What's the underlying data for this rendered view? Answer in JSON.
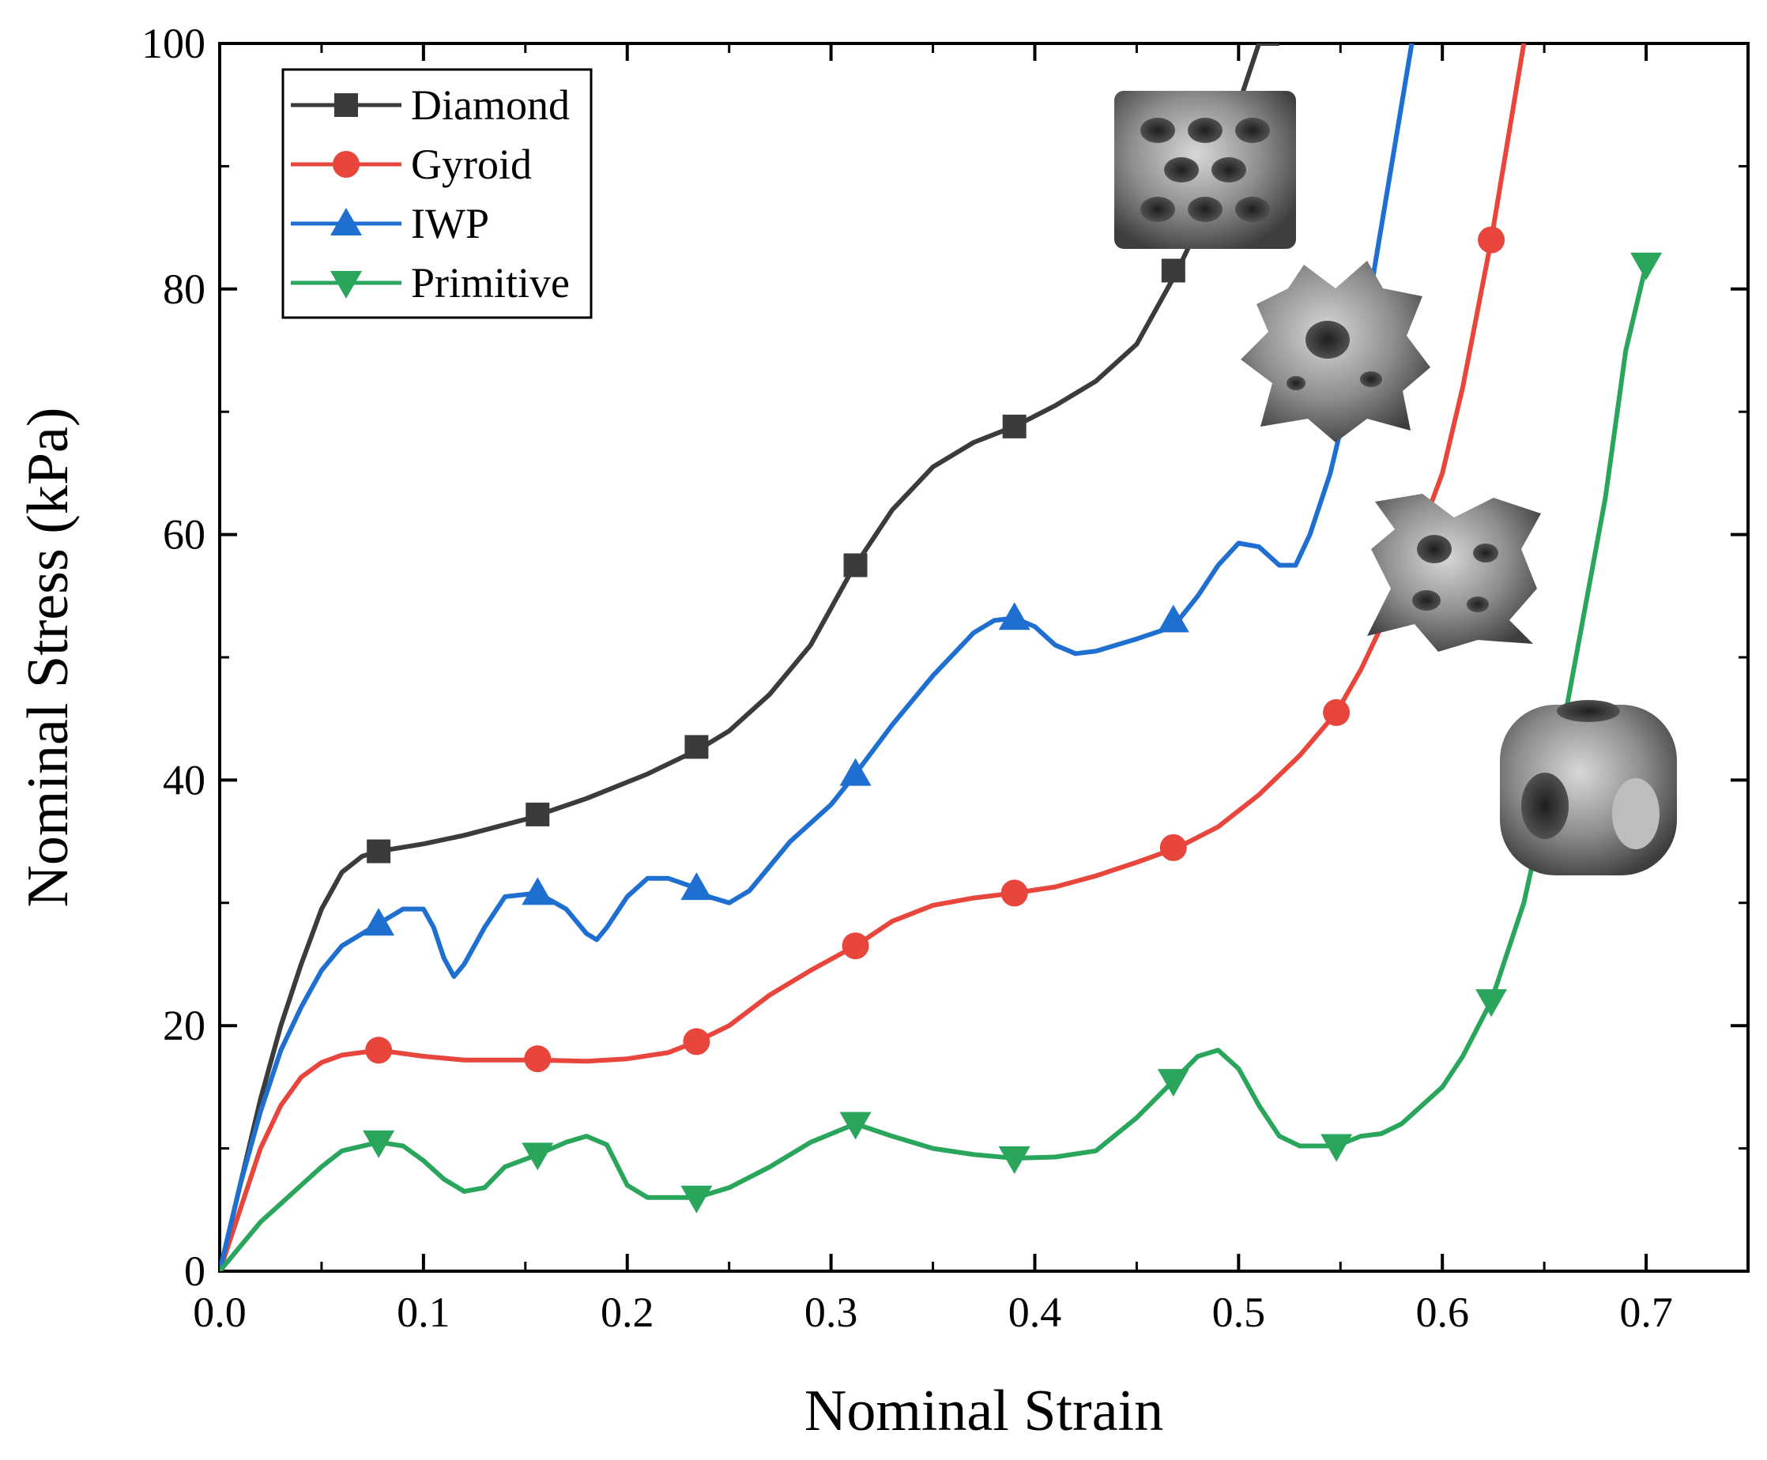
{
  "chart_data": {
    "type": "line",
    "title": "",
    "xlabel": "Nominal Strain",
    "ylabel": "Nominal Stress (kPa)",
    "xlim": [
      0,
      0.75
    ],
    "ylim": [
      0,
      100
    ],
    "xticks": [
      "0.0",
      "0.1",
      "0.2",
      "0.3",
      "0.4",
      "0.5",
      "0.6",
      "0.7"
    ],
    "yticks": [
      "0",
      "20",
      "40",
      "60",
      "80",
      "100"
    ],
    "legend_position": "top-left",
    "grid": false,
    "series": [
      {
        "name": "Diamond",
        "color": "#3b3b3b",
        "marker": "square",
        "x": [
          0,
          0.01,
          0.02,
          0.03,
          0.04,
          0.05,
          0.06,
          0.07,
          0.078,
          0.1,
          0.12,
          0.15,
          0.18,
          0.21,
          0.235,
          0.25,
          0.27,
          0.29,
          0.31,
          0.33,
          0.35,
          0.37,
          0.39,
          0.41,
          0.43,
          0.45,
          0.47,
          0.48,
          0.49,
          0.5,
          0.51,
          0.52
        ],
        "y": [
          0,
          7,
          14,
          20,
          25,
          29.5,
          32.5,
          33.8,
          34.2,
          34.8,
          35.5,
          36.8,
          38.5,
          40.5,
          42.5,
          44,
          47,
          51,
          57,
          62,
          65.5,
          67.5,
          68.8,
          70.5,
          72.5,
          75.5,
          81.5,
          85,
          90,
          95,
          100,
          100
        ]
      },
      {
        "name": "Gyroid",
        "color": "#e8463c",
        "marker": "circle",
        "x": [
          0,
          0.01,
          0.02,
          0.03,
          0.04,
          0.05,
          0.06,
          0.078,
          0.1,
          0.12,
          0.156,
          0.18,
          0.2,
          0.22,
          0.234,
          0.25,
          0.27,
          0.29,
          0.312,
          0.33,
          0.35,
          0.37,
          0.39,
          0.41,
          0.43,
          0.45,
          0.47,
          0.49,
          0.51,
          0.53,
          0.548,
          0.56,
          0.58,
          0.6,
          0.61,
          0.624,
          0.632,
          0.64
        ],
        "y": [
          0,
          5,
          10,
          13.5,
          15.8,
          17,
          17.6,
          18,
          17.5,
          17.2,
          17.2,
          17.1,
          17.3,
          17.8,
          18.7,
          20,
          22.5,
          24.5,
          26.5,
          28.5,
          29.8,
          30.4,
          30.8,
          31.3,
          32.2,
          33.3,
          34.5,
          36.2,
          38.8,
          42,
          45.5,
          49,
          56,
          65,
          72,
          84,
          92,
          100
        ]
      },
      {
        "name": "IWP",
        "color": "#1f6fd1",
        "marker": "triangle-up",
        "x": [
          0,
          0.01,
          0.02,
          0.03,
          0.04,
          0.05,
          0.06,
          0.078,
          0.09,
          0.1,
          0.105,
          0.11,
          0.115,
          0.12,
          0.13,
          0.14,
          0.156,
          0.17,
          0.18,
          0.185,
          0.19,
          0.2,
          0.21,
          0.22,
          0.234,
          0.24,
          0.25,
          0.26,
          0.28,
          0.3,
          0.312,
          0.33,
          0.35,
          0.37,
          0.38,
          0.39,
          0.4,
          0.41,
          0.42,
          0.43,
          0.45,
          0.468,
          0.48,
          0.49,
          0.5,
          0.51,
          0.52,
          0.528,
          0.535,
          0.545,
          0.555,
          0.565,
          0.575,
          0.585
        ],
        "y": [
          0,
          7,
          13,
          18,
          21.5,
          24.5,
          26.5,
          28.3,
          29.5,
          29.5,
          28,
          25.5,
          24,
          25,
          28,
          30.5,
          30.8,
          29.5,
          27.5,
          27,
          28,
          30.5,
          32,
          32,
          31.2,
          30.5,
          30,
          31,
          35,
          38,
          40.5,
          44.5,
          48.5,
          52,
          53,
          53.2,
          52.5,
          51,
          50.3,
          50.5,
          51.5,
          52.5,
          55,
          57.5,
          59.3,
          59,
          57.5,
          57.5,
          60,
          65,
          72,
          80,
          90,
          100
        ]
      },
      {
        "name": "Primitive",
        "color": "#2aa65c",
        "marker": "triangle-down",
        "x": [
          0,
          0.01,
          0.02,
          0.03,
          0.04,
          0.05,
          0.06,
          0.078,
          0.09,
          0.1,
          0.11,
          0.12,
          0.13,
          0.14,
          0.156,
          0.17,
          0.18,
          0.19,
          0.2,
          0.21,
          0.234,
          0.25,
          0.27,
          0.29,
          0.312,
          0.33,
          0.35,
          0.37,
          0.39,
          0.41,
          0.43,
          0.45,
          0.468,
          0.48,
          0.49,
          0.5,
          0.51,
          0.52,
          0.53,
          0.548,
          0.56,
          0.57,
          0.58,
          0.6,
          0.61,
          0.624,
          0.64,
          0.66,
          0.68,
          0.69,
          0.7
        ],
        "y": [
          0,
          2,
          4,
          5.5,
          7,
          8.5,
          9.8,
          10.5,
          10.2,
          9,
          7.5,
          6.5,
          6.8,
          8.5,
          9.5,
          10.5,
          11,
          10.3,
          7,
          6,
          6,
          6.8,
          8.5,
          10.5,
          12,
          11,
          10,
          9.5,
          9.2,
          9.3,
          9.8,
          12.5,
          15.5,
          17.5,
          18,
          16.5,
          13.5,
          11,
          10.2,
          10.2,
          11,
          11.2,
          12,
          15,
          17.5,
          22,
          30,
          45,
          63,
          75,
          82
        ]
      }
    ],
    "markers": {
      "Diamond": {
        "x": [
          0.078,
          0.156,
          0.234,
          0.312,
          0.39,
          0.468
        ],
        "y": [
          34.2,
          37.2,
          42.7,
          57.5,
          68.8,
          81.5
        ]
      },
      "Gyroid": {
        "x": [
          0.078,
          0.156,
          0.234,
          0.312,
          0.39,
          0.468,
          0.548,
          0.624
        ],
        "y": [
          18,
          17.3,
          18.7,
          26.5,
          30.8,
          34.5,
          45.5,
          84
        ]
      },
      "IWP": {
        "x": [
          0.078,
          0.156,
          0.234,
          0.312,
          0.39,
          0.468
        ],
        "y": [
          28.3,
          30.8,
          31.2,
          40.5,
          53.2,
          53
        ]
      },
      "Primitive": {
        "x": [
          0.078,
          0.156,
          0.234,
          0.312,
          0.39,
          0.468,
          0.548,
          0.624,
          0.7
        ],
        "y": [
          10.5,
          9.5,
          6,
          12,
          9.2,
          15.5,
          10.2,
          22,
          82
        ]
      }
    }
  }
}
